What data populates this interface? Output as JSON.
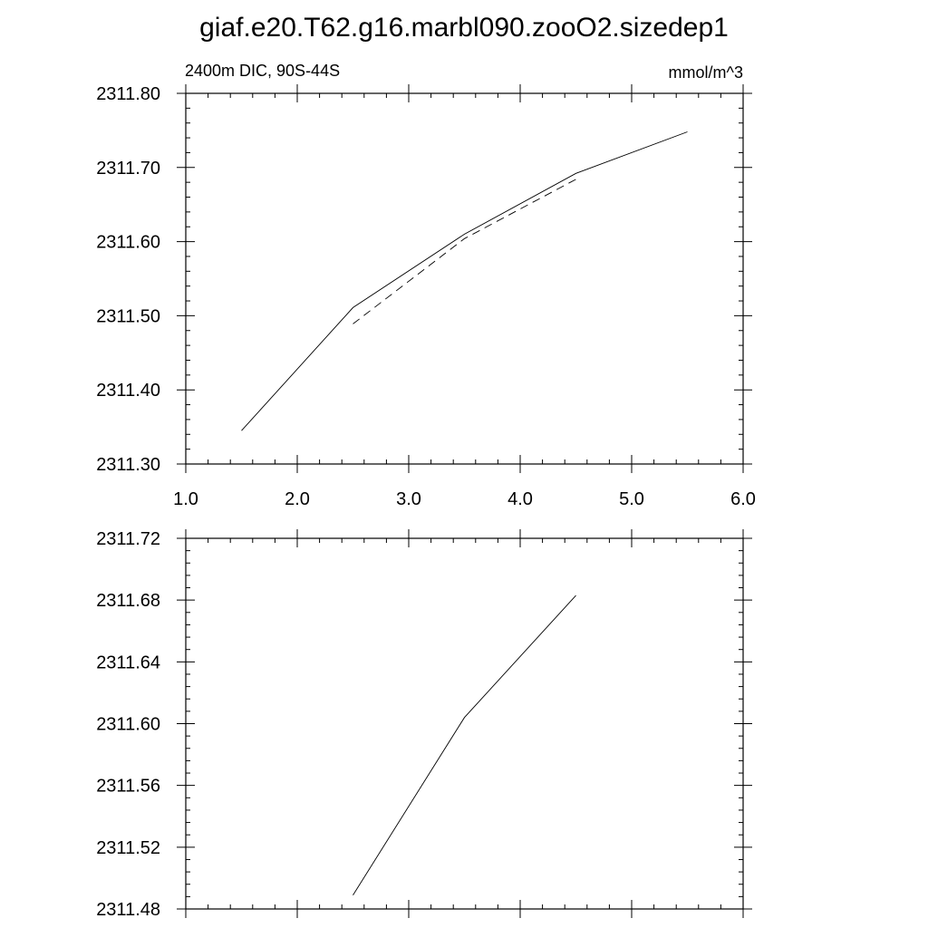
{
  "title": "giaf.e20.T62.g16.marbl090.zooO2.sizedep1",
  "chart_data": [
    {
      "type": "line",
      "left_label": "2400m DIC, 90S-44S",
      "right_label": "mmol/m^3",
      "xlim": [
        1.0,
        6.0
      ],
      "ylim": [
        2311.3,
        2311.8
      ],
      "xticks": [
        1.0,
        2.0,
        3.0,
        4.0,
        5.0,
        6.0
      ],
      "xtick_labels": [
        "1.0",
        "2.0",
        "3.0",
        "4.0",
        "5.0",
        "6.0"
      ],
      "yticks": [
        2311.3,
        2311.4,
        2311.5,
        2311.6,
        2311.7,
        2311.8
      ],
      "ytick_labels": [
        "2311.30",
        "2311.40",
        "2311.50",
        "2311.60",
        "2311.70",
        "2311.80"
      ],
      "series": [
        {
          "style": "solid",
          "color": "#000000",
          "x": [
            1.5,
            2.5,
            3.5,
            4.5,
            5.5
          ],
          "y": [
            2311.345,
            2311.511,
            2311.61,
            2311.692,
            2311.748
          ]
        },
        {
          "style": "dashed",
          "color": "#000000",
          "x": [
            2.5,
            3.5,
            4.5
          ],
          "y": [
            2311.489,
            2311.604,
            2311.684
          ]
        }
      ]
    },
    {
      "type": "line",
      "xlim": [
        1.0,
        6.0
      ],
      "ylim": [
        2311.48,
        2311.72
      ],
      "xticks": [
        1.0,
        2.0,
        3.0,
        4.0,
        5.0,
        6.0
      ],
      "yticks": [
        2311.48,
        2311.52,
        2311.56,
        2311.6,
        2311.64,
        2311.68,
        2311.72
      ],
      "ytick_labels": [
        "2311.48",
        "2311.52",
        "2311.56",
        "2311.60",
        "2311.64",
        "2311.68",
        "2311.72"
      ],
      "series": [
        {
          "style": "solid",
          "color": "#000000",
          "x": [
            2.5,
            3.5,
            4.5
          ],
          "y": [
            2311.489,
            2311.604,
            2311.683
          ]
        }
      ]
    }
  ]
}
